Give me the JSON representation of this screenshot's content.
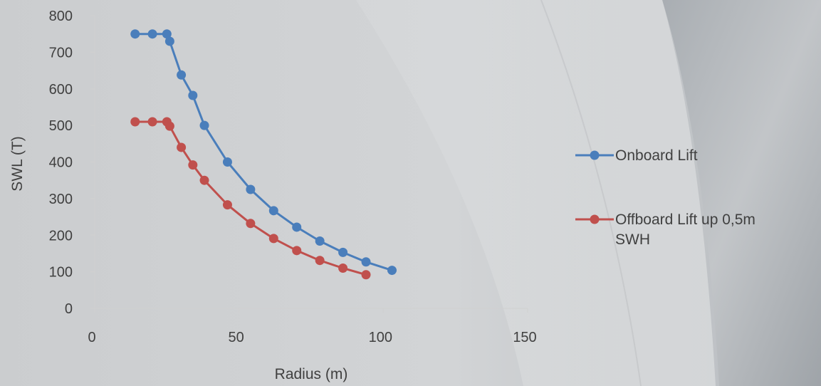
{
  "chart_data": {
    "type": "line",
    "xlabel": "Radius (m)",
    "ylabel": "SWL (T)",
    "xlim": [
      0,
      150
    ],
    "ylim": [
      0,
      800
    ],
    "xticks": [
      0,
      50,
      100,
      150
    ],
    "yticks": [
      0,
      100,
      200,
      300,
      400,
      500,
      600,
      700,
      800
    ],
    "grid": false,
    "legend_position": "right",
    "series": [
      {
        "name": "Onboard Lift",
        "color": "#4a7ebb",
        "x": [
          14,
          20,
          25,
          26,
          30,
          34,
          38,
          46,
          54,
          62,
          70,
          78,
          86,
          94,
          103
        ],
        "y": [
          750,
          750,
          750,
          730,
          638,
          582,
          500,
          400,
          325,
          267,
          222,
          184,
          153,
          127,
          104
        ]
      },
      {
        "name": "Offboard Lift up 0,5m SWH",
        "color": "#c0504d",
        "x": [
          14,
          20,
          25,
          26,
          30,
          34,
          38,
          46,
          54,
          62,
          70,
          78,
          86,
          94
        ],
        "y": [
          510,
          510,
          510,
          498,
          440,
          392,
          350,
          283,
          232,
          191,
          158,
          131,
          110,
          92
        ]
      }
    ]
  }
}
